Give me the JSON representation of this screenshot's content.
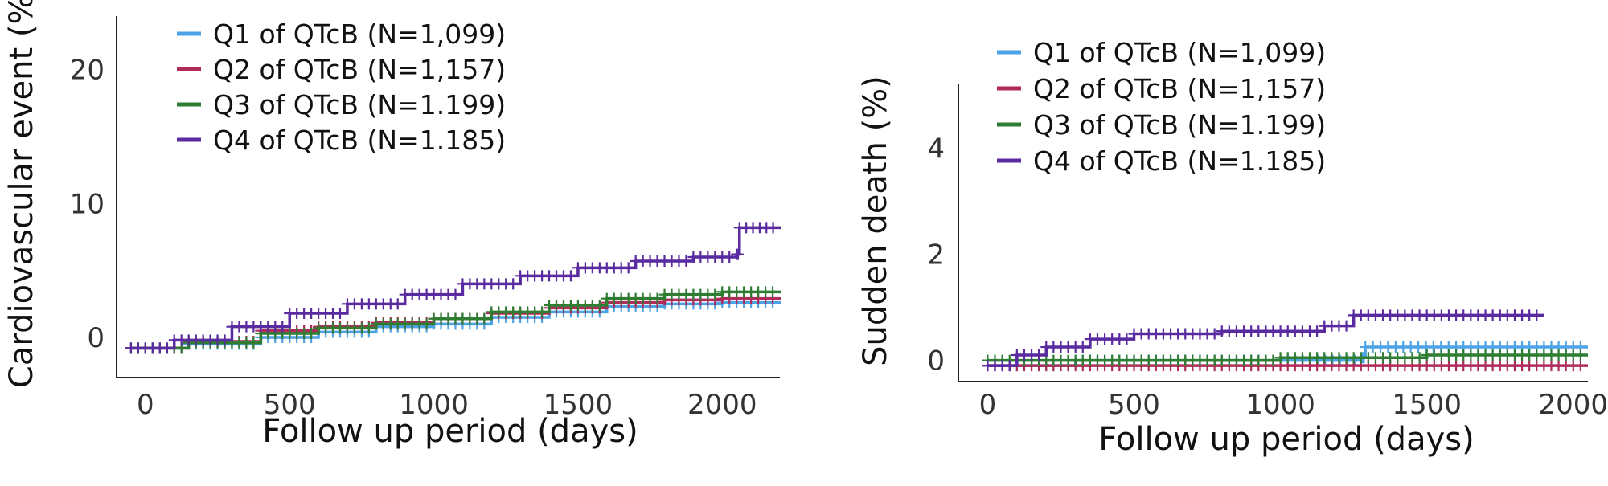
{
  "chart_data": [
    {
      "type": "line",
      "xlabel": "Follow up period (days)",
      "ylabel": "Cardiovascular event (%)",
      "xlim": [
        -100,
        2200
      ],
      "ylim": [
        -3,
        24
      ],
      "xticks": [
        "0",
        "500",
        "1000",
        "1500",
        "2000"
      ],
      "yticks": [
        "0",
        "10",
        "20"
      ],
      "legend_position": "top-left",
      "series": [
        {
          "name": "Q1 of QTcB (N=1,099)",
          "color": "#4da3e6",
          "x": [
            -50,
            150,
            400,
            600,
            800,
            1000,
            1200,
            1400,
            1600,
            1800,
            2000,
            2200
          ],
          "y": [
            -0.8,
            -0.5,
            0.0,
            0.4,
            0.8,
            1.0,
            1.5,
            1.9,
            2.3,
            2.5,
            2.6,
            2.7
          ]
        },
        {
          "name": "Q2 of QTcB (N=1,157)",
          "color": "#b02a5a",
          "x": [
            -50,
            150,
            400,
            600,
            800,
            1000,
            1200,
            1400,
            1600,
            1800,
            2000,
            2200
          ],
          "y": [
            -0.8,
            -0.3,
            0.5,
            0.8,
            1.1,
            1.4,
            1.8,
            2.2,
            2.6,
            2.8,
            2.9,
            3.0
          ]
        },
        {
          "name": "Q3 of QTcB (N=1.199)",
          "color": "#2e7d32",
          "x": [
            -50,
            150,
            400,
            600,
            800,
            1000,
            1200,
            1400,
            1600,
            1800,
            2000,
            2200
          ],
          "y": [
            -0.8,
            -0.4,
            0.3,
            0.7,
            1.0,
            1.4,
            1.9,
            2.4,
            2.9,
            3.2,
            3.4,
            3.5
          ]
        },
        {
          "name": "Q4 of QTcB (N=1.185)",
          "color": "#5a2aa0",
          "x": [
            -50,
            100,
            300,
            500,
            700,
            900,
            1100,
            1300,
            1500,
            1700,
            1900,
            2050,
            2060,
            2200
          ],
          "y": [
            -0.8,
            -0.2,
            0.8,
            1.8,
            2.5,
            3.2,
            4.0,
            4.6,
            5.2,
            5.7,
            6.0,
            6.2,
            8.2,
            8.3
          ]
        }
      ]
    },
    {
      "type": "line",
      "xlabel": "Follow up period (days)",
      "ylabel": "Sudden death (%)",
      "xlim": [
        -100,
        2050
      ],
      "ylim": [
        -0.4,
        5.2
      ],
      "xticks": [
        "0",
        "500",
        "1000",
        "1500",
        "2000"
      ],
      "yticks": [
        "0",
        "2",
        "4"
      ],
      "legend_position": "top-left",
      "series": [
        {
          "name": "Q1 of QTcB (N=1,099)",
          "color": "#4da3e6",
          "x": [
            0,
            300,
            700,
            1000,
            1280,
            1290,
            1600,
            2050
          ],
          "y": [
            -0.1,
            0.0,
            0.0,
            0.0,
            0.05,
            0.25,
            0.25,
            0.25
          ]
        },
        {
          "name": "Q2 of QTcB (N=1,157)",
          "color": "#b02a5a",
          "x": [
            0,
            500,
            1000,
            1500,
            2050
          ],
          "y": [
            -0.1,
            -0.1,
            -0.1,
            -0.1,
            -0.1
          ]
        },
        {
          "name": "Q3 of QTcB (N=1.199)",
          "color": "#2e7d32",
          "x": [
            0,
            500,
            1000,
            1500,
            2050
          ],
          "y": [
            0.0,
            0.0,
            0.05,
            0.1,
            0.1
          ]
        },
        {
          "name": "Q4 of QTcB (N=1.185)",
          "color": "#5a2aa0",
          "x": [
            0,
            100,
            200,
            350,
            500,
            800,
            1000,
            1150,
            1250,
            1500,
            1750,
            1900
          ],
          "y": [
            -0.1,
            0.1,
            0.25,
            0.4,
            0.5,
            0.55,
            0.55,
            0.65,
            0.85,
            0.85,
            0.85,
            0.85
          ]
        }
      ]
    }
  ]
}
